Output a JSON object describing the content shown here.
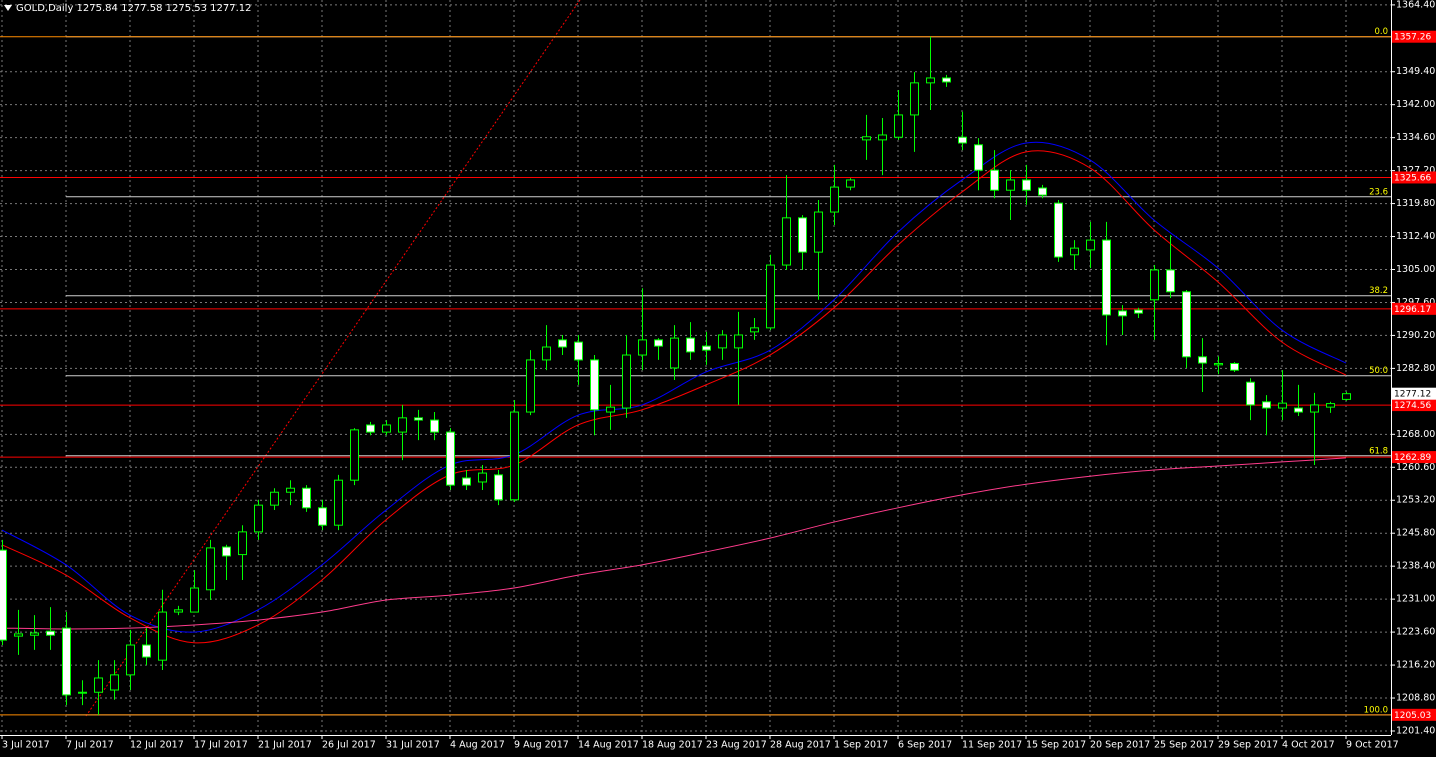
{
  "chart_data": {
    "type": "candlestick",
    "title": "GOLD,Daily  1275.84 1277.58 1275.53 1277.12",
    "categories": [
      "3 Jul 2017",
      null,
      null,
      null,
      "7 Jul 2017",
      null,
      null,
      null,
      "12 Jul 2017",
      null,
      null,
      null,
      "17 Jul 2017",
      null,
      null,
      null,
      "21 Jul 2017",
      null,
      null,
      null,
      "26 Jul 2017",
      null,
      null,
      null,
      "31 Jul 2017",
      null,
      null,
      null,
      "4 Aug 2017",
      null,
      null,
      null,
      "9 Aug 2017",
      null,
      null,
      null,
      "14 Aug 2017",
      null,
      null,
      null,
      "18 Aug 2017",
      null,
      null,
      null,
      "23 Aug 2017",
      null,
      null,
      null,
      "28 Aug 2017",
      null,
      null,
      null,
      "1 Sep 2017",
      null,
      null,
      null,
      "6 Sep 2017",
      null,
      null,
      null,
      "11 Sep 2017",
      null,
      null,
      null,
      "15 Sep 2017",
      null,
      null,
      null,
      "20 Sep 2017",
      null,
      null,
      null,
      "25 Sep 2017",
      null,
      null,
      null,
      "29 Sep 2017",
      null,
      null,
      null,
      "4 Oct 2017",
      null,
      null,
      null,
      "9 Oct 2017"
    ],
    "open": [
      1242.0,
      1222.7,
      1222.9,
      1223.8,
      1224.5,
      1209.9,
      1210.1,
      1210.6,
      1214.0,
      1220.7,
      1217.3,
      1228.1,
      1228.1,
      1233.1,
      1242.7,
      1241.0,
      1246.1,
      1252.1,
      1255.0,
      1255.9,
      1251.5,
      1247.6,
      1257.7,
      1270.1,
      1268.5,
      1268.5,
      1271.7,
      1271.2,
      1268.5,
      1258.2,
      1257.3,
      1258.9,
      1253.3,
      1273.0,
      1284.7,
      1289.2,
      1288.7,
      1284.7,
      1273.0,
      1273.9,
      1285.8,
      1289.2,
      1282.9,
      1289.6,
      1287.8,
      1287.4,
      1287.4,
      1291.0,
      1291.9,
      1306.0,
      1316.6,
      1308.9,
      1317.9,
      1323.5,
      1334.1,
      1334.1,
      1334.7,
      1339.7,
      1346.9,
      1348.0,
      1334.7,
      1333.0,
      1327.3,
      1322.8,
      1325.1,
      1323.3,
      1319.9,
      1308.3,
      1309.4,
      1311.6,
      1295.7,
      1295.9,
      1298.2,
      1304.9,
      1300.0,
      1285.4,
      1283.6,
      1283.9,
      1279.7,
      1275.3,
      1273.9,
      1273.9,
      1273.0,
      1274.1,
      1275.84
    ],
    "high": [
      1244.3,
      1228.6,
      1227.4,
      1229.2,
      1228.1,
      1212.8,
      1217.3,
      1217.3,
      1224.1,
      1224.5,
      1233.1,
      1229.5,
      1237.5,
      1244.3,
      1243.2,
      1247.6,
      1253.3,
      1255.9,
      1257.7,
      1256.6,
      1253.3,
      1258.9,
      1269.4,
      1270.8,
      1271.2,
      1274.6,
      1273.5,
      1273.0,
      1269.4,
      1260.0,
      1261.1,
      1260.0,
      1275.7,
      1286.9,
      1292.5,
      1290.3,
      1290.3,
      1285.8,
      1279.1,
      1290.3,
      1300.8,
      1289.6,
      1292.5,
      1293.2,
      1291.0,
      1291.4,
      1295.5,
      1294.1,
      1308.3,
      1326.2,
      1317.2,
      1320.6,
      1328.5,
      1325.5,
      1339.7,
      1339.0,
      1345.3,
      1349.3,
      1357.26,
      1348.7,
      1340.4,
      1334.5,
      1331.8,
      1327.3,
      1328.5,
      1324.0,
      1320.6,
      1311.6,
      1315.7,
      1315.7,
      1297.0,
      1296.4,
      1306.0,
      1312.7,
      1300.4,
      1289.6,
      1285.5,
      1284.2,
      1280.6,
      1276.8,
      1282.4,
      1279.1,
      1277.3,
      1275.3,
      1277.58
    ],
    "low": [
      1220.7,
      1218.5,
      1219.6,
      1219.6,
      1207.2,
      1207.2,
      1205.03,
      1208.4,
      1210.6,
      1216.2,
      1215.1,
      1227.4,
      1228.1,
      1230.8,
      1235.3,
      1235.3,
      1244.3,
      1251.0,
      1252.1,
      1250.6,
      1246.5,
      1246.5,
      1256.6,
      1267.8,
      1267.8,
      1262.2,
      1266.7,
      1266.7,
      1255.5,
      1255.5,
      1255.5,
      1252.1,
      1252.8,
      1272.3,
      1282.4,
      1285.8,
      1279.1,
      1267.8,
      1269.0,
      1271.7,
      1282.4,
      1284.7,
      1280.2,
      1284.7,
      1283.6,
      1284.7,
      1274.6,
      1289.2,
      1291.4,
      1304.9,
      1304.9,
      1298.2,
      1315.0,
      1322.8,
      1329.6,
      1326.2,
      1334.1,
      1331.4,
      1340.8,
      1346.0,
      1331.8,
      1322.8,
      1321.0,
      1316.1,
      1319.5,
      1321.0,
      1306.7,
      1304.9,
      1305.3,
      1288.0,
      1290.3,
      1294.1,
      1289.2,
      1298.6,
      1282.9,
      1277.5,
      1281.5,
      1282.0,
      1271.2,
      1267.8,
      1271.2,
      1272.1,
      1261.1,
      1272.8,
      1275.53
    ],
    "close": [
      1221.8,
      1223.2,
      1223.4,
      1222.9,
      1209.5,
      1210.1,
      1213.3,
      1214.0,
      1220.7,
      1218.0,
      1228.1,
      1228.6,
      1233.5,
      1242.5,
      1240.7,
      1246.1,
      1252.1,
      1255.0,
      1255.9,
      1251.5,
      1247.6,
      1257.7,
      1269.0,
      1268.5,
      1270.1,
      1271.7,
      1271.2,
      1268.5,
      1256.6,
      1256.6,
      1259.3,
      1253.3,
      1273.0,
      1284.7,
      1287.6,
      1287.6,
      1284.7,
      1273.5,
      1274.1,
      1285.8,
      1289.2,
      1287.8,
      1289.6,
      1286.5,
      1286.9,
      1290.3,
      1290.3,
      1291.9,
      1306.0,
      1316.6,
      1308.9,
      1317.9,
      1323.5,
      1325.1,
      1334.8,
      1335.2,
      1339.7,
      1346.9,
      1348.0,
      1347.1,
      1333.4,
      1327.3,
      1322.8,
      1325.1,
      1322.8,
      1321.7,
      1307.8,
      1309.8,
      1311.6,
      1294.8,
      1294.6,
      1295.2,
      1304.9,
      1300.0,
      1285.4,
      1284.0,
      1283.9,
      1282.4,
      1274.6,
      1273.9,
      1275.0,
      1273.0,
      1274.6,
      1274.9,
      1277.12
    ],
    "up_color": "#00ff00",
    "down_color": "#ffffff",
    "moving_averages": [
      {
        "color": "#0000ff",
        "x": [
          "3 Jul 2017",
          "7 Jul 2017",
          "12 Jul 2017",
          "17 Jul 2017",
          "21 Jul 2017",
          "26 Jul 2017",
          "31 Jul 2017",
          "4 Aug 2017",
          "9 Aug 2017",
          "14 Aug 2017",
          "18 Aug 2017",
          "23 Aug 2017",
          "28 Aug 2017",
          "1 Sep 2017",
          "6 Sep 2017",
          "11 Sep 2017",
          "15 Sep 2017",
          "20 Sep 2017",
          "25 Sep 2017",
          "29 Sep 2017",
          "4 Oct 2017",
          "9 Oct 2017"
        ],
        "values": [
          1246.5,
          1238.7,
          1227.4,
          1223.6,
          1228.6,
          1238.7,
          1251.0,
          1261.1,
          1263.4,
          1272.3,
          1274.6,
          1282.0,
          1286.9,
          1298.2,
          1313.4,
          1325.1,
          1333.4,
          1329.6,
          1316.1,
          1305.3,
          1291.4,
          1284.0
        ]
      },
      {
        "color": "#ff0000",
        "x": [
          "3 Jul 2017",
          "7 Jul 2017",
          "12 Jul 2017",
          "17 Jul 2017",
          "21 Jul 2017",
          "26 Jul 2017",
          "31 Jul 2017",
          "4 Aug 2017",
          "9 Aug 2017",
          "14 Aug 2017",
          "18 Aug 2017",
          "23 Aug 2017",
          "28 Aug 2017",
          "1 Sep 2017",
          "6 Sep 2017",
          "11 Sep 2017",
          "15 Sep 2017",
          "20 Sep 2017",
          "25 Sep 2017",
          "29 Sep 2017",
          "4 Oct 2017",
          "9 Oct 2017"
        ],
        "values": [
          1243.2,
          1236.4,
          1226.8,
          1221.2,
          1225.2,
          1235.3,
          1248.8,
          1258.9,
          1261.1,
          1270.1,
          1273.5,
          1279.1,
          1285.8,
          1296.4,
          1310.5,
          1322.4,
          1331.4,
          1327.8,
          1313.9,
          1302.2,
          1288.7,
          1281.3
        ]
      },
      {
        "color": "#ff3c8c",
        "x": [
          "3 Jul 2017",
          "7 Jul 2017",
          "12 Jul 2017",
          "17 Jul 2017",
          "21 Jul 2017",
          "26 Jul 2017",
          "31 Jul 2017",
          "4 Aug 2017",
          "9 Aug 2017",
          "14 Aug 2017",
          "18 Aug 2017",
          "23 Aug 2017",
          "28 Aug 2017",
          "1 Sep 2017",
          "6 Sep 2017",
          "11 Sep 2017",
          "15 Sep 2017",
          "20 Sep 2017",
          "25 Sep 2017",
          "29 Sep 2017",
          "4 Oct 2017",
          "9 Oct 2017"
        ],
        "values": [
          1224.5,
          1224.3,
          1224.5,
          1225.2,
          1226.3,
          1228.1,
          1230.8,
          1231.9,
          1233.5,
          1236.4,
          1238.7,
          1241.6,
          1244.7,
          1248.3,
          1251.5,
          1254.4,
          1256.8,
          1258.6,
          1260.0,
          1260.9,
          1261.8,
          1262.7
        ]
      }
    ],
    "price_lines": [
      {
        "value": 1357.26,
        "color": "#ff8c00"
      },
      {
        "value": 1325.66,
        "color": "#ff0000"
      },
      {
        "value": 1296.17,
        "color": "#ff0000"
      },
      {
        "value": 1274.56,
        "color": "#ff0000"
      },
      {
        "value": 1262.89,
        "color": "#ff0000"
      },
      {
        "value": 1205.03,
        "color": "#ff8c00"
      }
    ],
    "fibonacci": {
      "color": "#ffff00",
      "line_color": "#d0d0d0",
      "start": "7 Jul 2017",
      "levels": [
        {
          "ratio": "0.0",
          "value": 1357.26
        },
        {
          "ratio": "23.6",
          "value": 1321.33
        },
        {
          "ratio": "38.2",
          "value": 1299.11
        },
        {
          "ratio": "50.0",
          "value": 1281.15
        },
        {
          "ratio": "61.8",
          "value": 1263.18
        },
        {
          "ratio": "100.0",
          "value": 1205.03
        }
      ]
    },
    "bid": 1277.12,
    "ylim": [
      1200.5,
      1365.5
    ],
    "yticks": [
      {
        "value": 1364.4,
        "label": "1364.40"
      },
      {
        "value": 1349.4,
        "label": "1349.40"
      },
      {
        "value": 1342.0,
        "label": "1342.00"
      },
      {
        "value": 1334.6,
        "label": "1334.60"
      },
      {
        "value": 1327.2,
        "label": "1327.20"
      },
      {
        "value": 1319.8,
        "label": "1319.80"
      },
      {
        "value": 1312.4,
        "label": "1312.40"
      },
      {
        "value": 1305.0,
        "label": "1305.00"
      },
      {
        "value": 1297.6,
        "label": "1297.60"
      },
      {
        "value": 1290.2,
        "label": "1290.20"
      },
      {
        "value": 1282.8,
        "label": "1282.80"
      },
      {
        "value": 1268.0,
        "label": "1268.00"
      },
      {
        "value": 1260.6,
        "label": "1260.60"
      },
      {
        "value": 1253.2,
        "label": "1253.20"
      },
      {
        "value": 1245.8,
        "label": "1245.80"
      },
      {
        "value": 1238.4,
        "label": "1238.40"
      },
      {
        "value": 1231.0,
        "label": "1231.00"
      },
      {
        "value": 1223.6,
        "label": "1223.60"
      },
      {
        "value": 1216.2,
        "label": "1216.20"
      },
      {
        "value": 1208.8,
        "label": "1208.80"
      },
      {
        "value": 1201.4,
        "label": "1201.40"
      }
    ],
    "grid": true
  }
}
